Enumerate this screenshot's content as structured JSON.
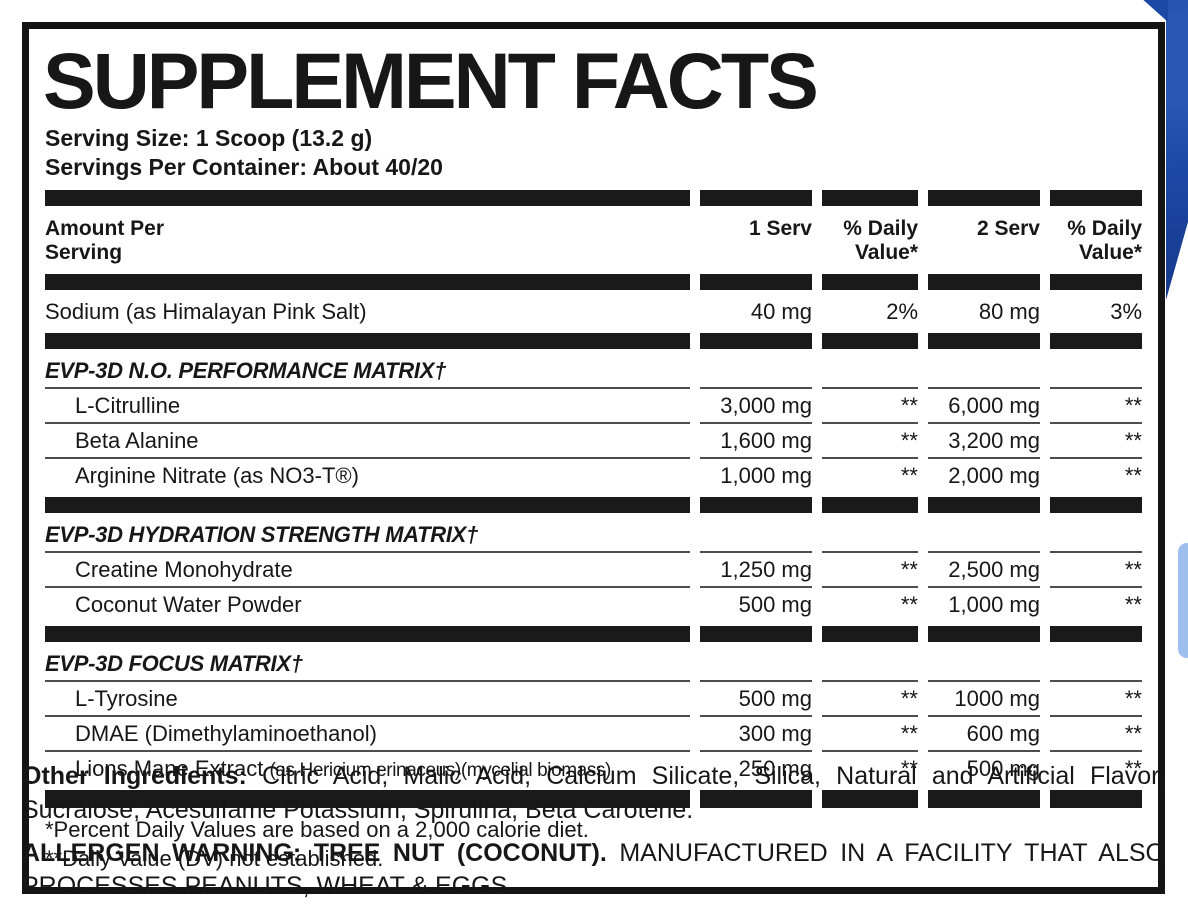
{
  "colors": {
    "label_black": "#1a1a1a",
    "background_blue": "#1c48a6",
    "light_blue_accent": "#86aee8"
  },
  "panel": {
    "title": "SUPPLEMENT FACTS",
    "serving_size": "Serving Size: 1 Scoop (13.2 g)",
    "servings_per_container": "Servings Per Container: About 40/20"
  },
  "table": {
    "header": {
      "amount_line1": "Amount Per",
      "amount_line2": "Serving",
      "col1": "1 Serv",
      "col2a": "% Daily",
      "col2b": "Value*",
      "col3": "2 Serv",
      "col4a": "% Daily",
      "col4b": "Value*"
    },
    "sodium": {
      "name": "Sodium (as Himalayan Pink Salt)",
      "v1": "40 mg",
      "dv1": "2%",
      "v2": "80 mg",
      "dv2": "3%"
    },
    "sections": [
      {
        "header": "EVP-3D N.O. PERFORMANCE MATRIX†",
        "items": [
          {
            "name": "L-Citrulline",
            "v1": "3,000 mg",
            "dv1": "**",
            "v2": "6,000 mg",
            "dv2": "**"
          },
          {
            "name": "Beta Alanine",
            "v1": "1,600 mg",
            "dv1": "**",
            "v2": "3,200 mg",
            "dv2": "**"
          },
          {
            "name": "Arginine Nitrate (as NO3-T®)",
            "v1": "1,000 mg",
            "dv1": "**",
            "v2": "2,000 mg",
            "dv2": "**"
          }
        ]
      },
      {
        "header": "EVP-3D HYDRATION STRENGTH MATRIX†",
        "items": [
          {
            "name": "Creatine Monohydrate",
            "v1": "1,250 mg",
            "dv1": "**",
            "v2": "2,500 mg",
            "dv2": "**"
          },
          {
            "name": "Coconut Water Powder",
            "v1": "500 mg",
            "dv1": "**",
            "v2": "1,000 mg",
            "dv2": "**"
          }
        ]
      },
      {
        "header": "EVP-3D FOCUS MATRIX†",
        "items": [
          {
            "name": "L-Tyrosine",
            "v1": "500 mg",
            "dv1": "**",
            "v2": "1000 mg",
            "dv2": "**"
          },
          {
            "name": "DMAE (Dimethylaminoethanol)",
            "v1": "300 mg",
            "dv1": "**",
            "v2": "600 mg",
            "dv2": "**"
          },
          {
            "name": "Lions Mane Extract",
            "name_detail": "(as Hericium erinaceus)(mycelial biomass)",
            "v1": "250 mg",
            "dv1": "**",
            "v2": "500 mg",
            "dv2": "**"
          }
        ]
      }
    ],
    "footnote1": "*Percent Daily Values are based on a 2,000 calorie diet.",
    "footnote2": "**Daily Value (DV) not established."
  },
  "bottom": {
    "other_label": "Other Ingredients:",
    "other_text": "Citric Acid, Malic Acid, Calcium Silicate, Silica, Natural and Artificial Flavor, Sucralose, Acesulfame Potassium, Spirulina, Beta Carotene.",
    "allergen_label": "ALLERGEN WARNING: TREE NUT (COCONUT).",
    "allergen_text": "MANUFACTURED IN A FACILITY THAT ALSO PROCESSES PEANUTS, WHEAT & EGGS."
  }
}
